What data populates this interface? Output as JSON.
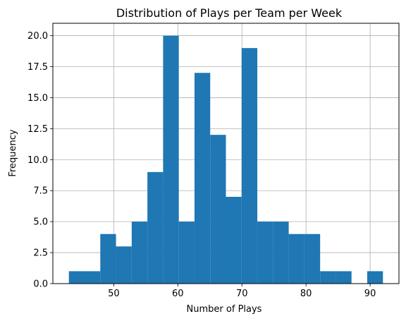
{
  "chart_data": {
    "type": "bar",
    "title": "Distribution of Plays per Team per Week",
    "xlabel": "Number of Plays",
    "ylabel": "Frequency",
    "xlim": [
      40.5,
      94.5
    ],
    "ylim": [
      0,
      21
    ],
    "grid": true,
    "bar_color": "#1f77b4",
    "grid_color": "#b0b0b0",
    "xticks": [
      50,
      60,
      70,
      80,
      90
    ],
    "xtick_labels": [
      "50",
      "60",
      "70",
      "80",
      "90"
    ],
    "yticks": [
      0,
      2.5,
      5,
      7.5,
      10,
      12.5,
      15,
      17.5,
      20
    ],
    "ytick_labels": [
      "0.0",
      "2.5",
      "5.0",
      "7.5",
      "10.0",
      "12.5",
      "15.0",
      "17.5",
      "20.0"
    ],
    "bins": [
      {
        "x0": 43.0,
        "x1": 45.45,
        "count": 1
      },
      {
        "x0": 45.45,
        "x1": 47.9,
        "count": 1
      },
      {
        "x0": 47.9,
        "x1": 50.35,
        "count": 4
      },
      {
        "x0": 50.35,
        "x1": 52.8,
        "count": 3
      },
      {
        "x0": 52.8,
        "x1": 55.25,
        "count": 5
      },
      {
        "x0": 55.25,
        "x1": 57.7,
        "count": 9
      },
      {
        "x0": 57.7,
        "x1": 60.15,
        "count": 20
      },
      {
        "x0": 60.15,
        "x1": 62.6,
        "count": 5
      },
      {
        "x0": 62.6,
        "x1": 65.05,
        "count": 17
      },
      {
        "x0": 65.05,
        "x1": 67.5,
        "count": 12
      },
      {
        "x0": 67.5,
        "x1": 69.95,
        "count": 7
      },
      {
        "x0": 69.95,
        "x1": 72.4,
        "count": 19
      },
      {
        "x0": 72.4,
        "x1": 74.85,
        "count": 5
      },
      {
        "x0": 74.85,
        "x1": 77.3,
        "count": 5
      },
      {
        "x0": 77.3,
        "x1": 79.75,
        "count": 4
      },
      {
        "x0": 79.75,
        "x1": 82.2,
        "count": 4
      },
      {
        "x0": 82.2,
        "x1": 84.65,
        "count": 1
      },
      {
        "x0": 84.65,
        "x1": 87.1,
        "count": 1
      },
      {
        "x0": 87.1,
        "x1": 89.55,
        "count": 0
      },
      {
        "x0": 89.55,
        "x1": 92.0,
        "count": 1
      }
    ]
  }
}
